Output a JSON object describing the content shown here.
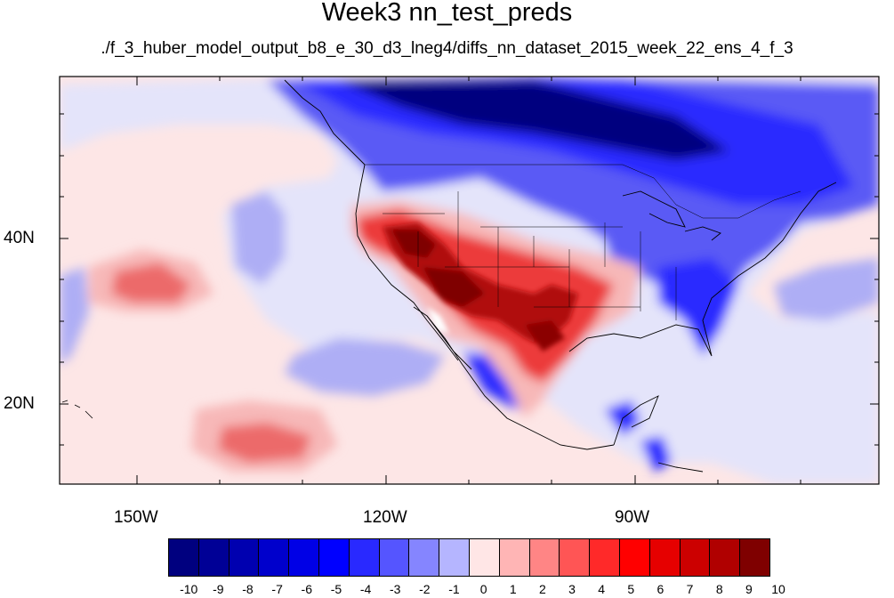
{
  "title": "Week3 nn_test_preds",
  "subtitle": "./f_3_huber_model_output_b8_e_30_d3_lneg4/diffs_nn_dataset_2015_week_22_ens_4_f_3",
  "map": {
    "lon_labels": [
      "150W",
      "120W",
      "90W"
    ],
    "lat_labels": [
      "40N",
      "20N"
    ],
    "field_colors": {
      "strong_negative": "#00007f",
      "negative": "#2929ff",
      "weak_negative": "#aeaef5",
      "near_zero_negative": "#e4e4fa",
      "near_zero_positive": "#fde6e6",
      "weak_positive": "#f7b8b8",
      "positive": "#ec3b3b",
      "strong_positive": "#8b0000"
    }
  },
  "colorbar": {
    "labels": [
      "-10",
      "-9",
      "-8",
      "-7",
      "-6",
      "-5",
      "-4",
      "-3",
      "-2",
      "-1",
      "0",
      "1",
      "2",
      "3",
      "4",
      "5",
      "6",
      "7",
      "8",
      "9",
      "10"
    ],
    "colors": [
      "#00007f",
      "#000096",
      "#0000b0",
      "#0000cc",
      "#0000e6",
      "#0000ff",
      "#2929ff",
      "#5555ff",
      "#8585ff",
      "#b5b5ff",
      "#e6e6f8",
      "#ffe6e6",
      "#ffb5b5",
      "#ff8585",
      "#ff5555",
      "#ff2929",
      "#ff0000",
      "#e60000",
      "#cc0000",
      "#b00000",
      "#7f0000"
    ]
  }
}
